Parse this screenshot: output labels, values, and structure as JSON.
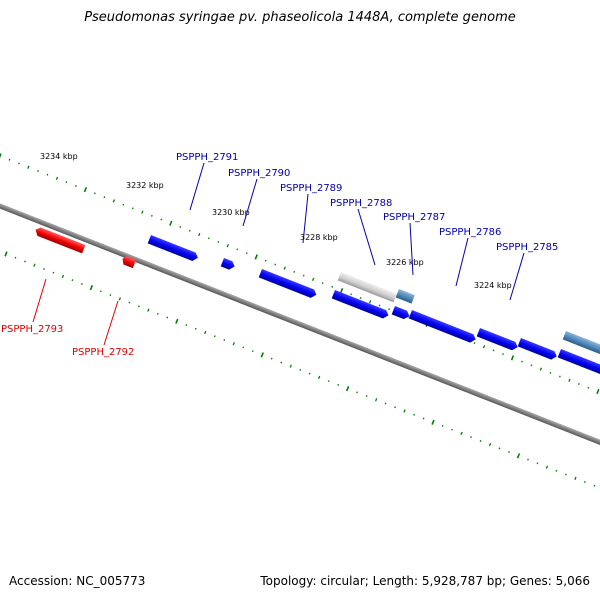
{
  "title": "Pseudomonas syringae pv. phaseolicola 1448A, complete genome",
  "footer": {
    "accession": "Accession: NC_005773",
    "summary": "Topology: circular; Length: 5,928,787 bp; Genes: 5,066"
  },
  "colors": {
    "backbone": "#808080",
    "forward_gene": "#0000ff",
    "reverse_gene": "#ff0000",
    "pseudo_gene": "#c0c0c0",
    "rna_gene": "#4f86b8",
    "tick": "#008000",
    "forward_label": "#0000aa",
    "reverse_label": "#dd0000"
  },
  "kbp_labels": [
    "3234 kbp",
    "3232 kbp",
    "3230 kbp",
    "3228 kbp",
    "3226 kbp",
    "3224 kbp"
  ],
  "gene_labels": {
    "forward": [
      "PSPPH_2791",
      "PSPPH_2790",
      "PSPPH_2789",
      "PSPPH_2788",
      "PSPPH_2787",
      "PSPPH_2786",
      "PSPPH_2785"
    ],
    "reverse": [
      "PSPPH_2793",
      "PSPPH_2792"
    ]
  }
}
